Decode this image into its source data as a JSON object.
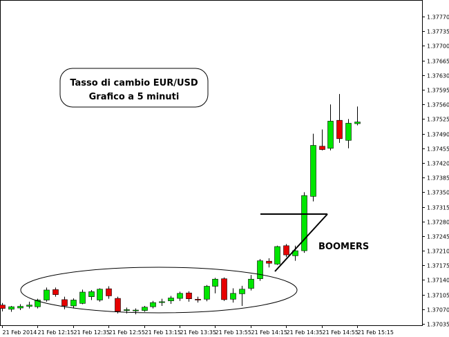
{
  "chart_data": {
    "type": "candlestick",
    "title_lines": [
      "Tasso di cambio EUR/USD",
      "Grafico a 5 minuti"
    ],
    "annotation": "BOOMERS",
    "ylim": [
      1.37035,
      1.37785
    ],
    "y_ticks": [
      "1.37035",
      "1.37070",
      "1.37105",
      "1.37140",
      "1.37175",
      "1.37210",
      "1.37245",
      "1.37280",
      "1.37315",
      "1.37350",
      "1.37385",
      "1.37420",
      "1.37455",
      "1.37490",
      "1.37525",
      "1.37560",
      "1.37595",
      "1.37630",
      "1.37665",
      "1.37700",
      "1.37735",
      "1.37770"
    ],
    "y_tick_values": [
      1.37035,
      1.3707,
      1.37105,
      1.3714,
      1.37175,
      1.3721,
      1.37245,
      1.3728,
      1.37315,
      1.3735,
      1.37385,
      1.3742,
      1.37455,
      1.3749,
      1.37525,
      1.3756,
      1.37595,
      1.3763,
      1.37665,
      1.377,
      1.37735,
      1.3777
    ],
    "x_tick_labels": [
      "21 Feb 2014",
      "21 Feb 12:15",
      "21 Feb 12:35",
      "21 Feb 12:55",
      "21 Feb 13:15",
      "21 Feb 13:35",
      "21 Feb 13:55",
      "21 Feb 14:15",
      "21 Feb 14:35",
      "21 Feb 14:55",
      "21 Feb 15:15"
    ],
    "x_tick_candle_index": [
      0,
      4,
      8,
      12,
      16,
      20,
      24,
      28,
      32,
      36,
      40
    ],
    "colors": {
      "up": "#00e600",
      "down": "#e60000",
      "outline": "#000000"
    },
    "candles": [
      {
        "o": 1.3708,
        "h": 1.37085,
        "l": 1.37065,
        "c": 1.37072
      },
      {
        "o": 1.3707,
        "h": 1.37078,
        "l": 1.37064,
        "c": 1.37076
      },
      {
        "o": 1.37073,
        "h": 1.37082,
        "l": 1.37068,
        "c": 1.37077
      },
      {
        "o": 1.37077,
        "h": 1.37088,
        "l": 1.37072,
        "c": 1.3708
      },
      {
        "o": 1.37076,
        "h": 1.37095,
        "l": 1.37072,
        "c": 1.37092
      },
      {
        "o": 1.37092,
        "h": 1.37122,
        "l": 1.37088,
        "c": 1.37116
      },
      {
        "o": 1.37117,
        "h": 1.37122,
        "l": 1.371,
        "c": 1.37105
      },
      {
        "o": 1.37093,
        "h": 1.371,
        "l": 1.3707,
        "c": 1.37078
      },
      {
        "o": 1.37078,
        "h": 1.37096,
        "l": 1.37072,
        "c": 1.37092
      },
      {
        "o": 1.37084,
        "h": 1.37117,
        "l": 1.37082,
        "c": 1.37111
      },
      {
        "o": 1.371,
        "h": 1.37116,
        "l": 1.37092,
        "c": 1.37112
      },
      {
        "o": 1.37092,
        "h": 1.3712,
        "l": 1.37088,
        "c": 1.37118
      },
      {
        "o": 1.37119,
        "h": 1.37125,
        "l": 1.37095,
        "c": 1.37102
      },
      {
        "o": 1.37096,
        "h": 1.371,
        "l": 1.3706,
        "c": 1.37065
      },
      {
        "o": 1.37067,
        "h": 1.37074,
        "l": 1.3706,
        "c": 1.37069
      },
      {
        "o": 1.37066,
        "h": 1.37072,
        "l": 1.37058,
        "c": 1.37068
      },
      {
        "o": 1.37067,
        "h": 1.37078,
        "l": 1.37064,
        "c": 1.37075
      },
      {
        "o": 1.37076,
        "h": 1.3709,
        "l": 1.37072,
        "c": 1.37086
      },
      {
        "o": 1.37086,
        "h": 1.37095,
        "l": 1.37078,
        "c": 1.37088
      },
      {
        "o": 1.3709,
        "h": 1.37102,
        "l": 1.37083,
        "c": 1.37097
      },
      {
        "o": 1.37096,
        "h": 1.37112,
        "l": 1.3709,
        "c": 1.37108
      },
      {
        "o": 1.37109,
        "h": 1.37113,
        "l": 1.37088,
        "c": 1.37095
      },
      {
        "o": 1.37094,
        "h": 1.371,
        "l": 1.37086,
        "c": 1.37092
      },
      {
        "o": 1.37094,
        "h": 1.37128,
        "l": 1.37089,
        "c": 1.37125
      },
      {
        "o": 1.37125,
        "h": 1.37145,
        "l": 1.37108,
        "c": 1.37142
      },
      {
        "o": 1.37143,
        "h": 1.37146,
        "l": 1.3709,
        "c": 1.37093
      },
      {
        "o": 1.37094,
        "h": 1.3712,
        "l": 1.37086,
        "c": 1.37108
      },
      {
        "o": 1.37107,
        "h": 1.37126,
        "l": 1.37078,
        "c": 1.37118
      },
      {
        "o": 1.3712,
        "h": 1.37152,
        "l": 1.37115,
        "c": 1.37142
      },
      {
        "o": 1.37143,
        "h": 1.3719,
        "l": 1.37138,
        "c": 1.37186
      },
      {
        "o": 1.37185,
        "h": 1.37192,
        "l": 1.3717,
        "c": 1.3718
      },
      {
        "o": 1.37178,
        "h": 1.37222,
        "l": 1.37176,
        "c": 1.3722
      },
      {
        "o": 1.37222,
        "h": 1.37226,
        "l": 1.37195,
        "c": 1.372
      },
      {
        "o": 1.37198,
        "h": 1.37222,
        "l": 1.37186,
        "c": 1.3721
      },
      {
        "o": 1.3721,
        "h": 1.3735,
        "l": 1.37205,
        "c": 1.37342
      },
      {
        "o": 1.3734,
        "h": 1.3749,
        "l": 1.37328,
        "c": 1.37462
      },
      {
        "o": 1.3746,
        "h": 1.375,
        "l": 1.3745,
        "c": 1.37452
      },
      {
        "o": 1.37455,
        "h": 1.3756,
        "l": 1.3745,
        "c": 1.3752
      },
      {
        "o": 1.37522,
        "h": 1.37585,
        "l": 1.37468,
        "c": 1.37478
      },
      {
        "o": 1.37474,
        "h": 1.37525,
        "l": 1.37455,
        "c": 1.37515
      },
      {
        "o": 1.37514,
        "h": 1.37555,
        "l": 1.3751,
        "c": 1.37518
      }
    ]
  }
}
